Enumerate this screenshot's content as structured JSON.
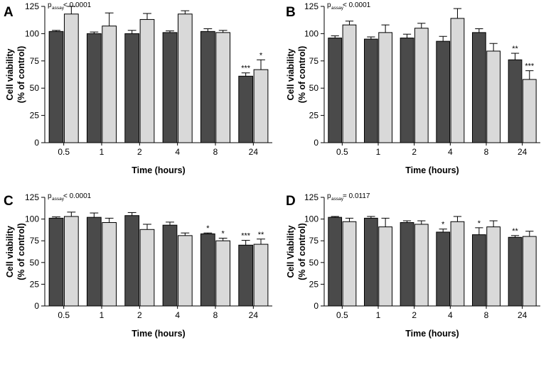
{
  "colors": {
    "dark_bar": "#4a4a4a",
    "light_bar": "#d9d9d9",
    "axis": "#000000"
  },
  "chart_data": [
    {
      "panel": "A",
      "type": "bar",
      "p_value": {
        "symbol": "p",
        "subscript": "assay",
        "text": " < 0.0001"
      },
      "xlabel": "Time (hours)",
      "ylabel": [
        "Cell viability",
        "(% of control)"
      ],
      "ylim": [
        0,
        125
      ],
      "yticks": [
        "0",
        "25",
        "50",
        "75",
        "100",
        "125"
      ],
      "categories": [
        "0.5",
        "1",
        "2",
        "4",
        "8",
        "24"
      ],
      "series": [
        {
          "name": "dark",
          "values": [
            102,
            100,
            100,
            101,
            102,
            61
          ],
          "errors": [
            1,
            1.5,
            3,
            1.5,
            2.5,
            3
          ],
          "sig": [
            "",
            "",
            "",
            "",
            "",
            "***"
          ]
        },
        {
          "name": "light",
          "values": [
            118,
            107,
            113,
            118,
            101,
            67
          ],
          "errors": [
            7,
            12,
            5.5,
            3,
            2,
            9
          ],
          "sig": [
            "",
            "",
            "",
            "",
            "",
            "*"
          ]
        }
      ]
    },
    {
      "panel": "B",
      "type": "bar",
      "p_value": {
        "symbol": "p",
        "subscript": "assay",
        "text": " < 0.0001"
      },
      "xlabel": "Time (hours)",
      "ylabel": [
        "Cell viability",
        "(% of control)"
      ],
      "ylim": [
        0,
        125
      ],
      "yticks": [
        "0",
        "25",
        "50",
        "75",
        "100",
        "125"
      ],
      "categories": [
        "0.5",
        "1",
        "2",
        "4",
        "8",
        "24"
      ],
      "series": [
        {
          "name": "dark",
          "values": [
            96,
            95,
            96,
            93,
            101,
            76
          ],
          "errors": [
            2,
            2,
            3.5,
            4.5,
            3.5,
            6
          ],
          "sig": [
            "",
            "",
            "",
            "",
            "",
            "**"
          ]
        },
        {
          "name": "light",
          "values": [
            108,
            101,
            105,
            114,
            84,
            58
          ],
          "errors": [
            3.5,
            7,
            4.5,
            9,
            7,
            8
          ],
          "sig": [
            "",
            "",
            "",
            "",
            "",
            "***"
          ]
        }
      ]
    },
    {
      "panel": "C",
      "type": "bar",
      "p_value": {
        "symbol": "p",
        "subscript": "assay",
        "text": " < 0.0001"
      },
      "xlabel": "Time (hours)",
      "ylabel": [
        "Cell viability",
        "(% of control)"
      ],
      "ylim": [
        0,
        125
      ],
      "yticks": [
        "0",
        "25",
        "50",
        "75",
        "100",
        "125"
      ],
      "categories": [
        "0.5",
        "1",
        "2",
        "4",
        "8",
        "24"
      ],
      "series": [
        {
          "name": "dark",
          "values": [
            101,
            102,
            104,
            93,
            83,
            70
          ],
          "errors": [
            1.5,
            5,
            3.5,
            3.5,
            1,
            5.5
          ],
          "sig": [
            "",
            "",
            "",
            "",
            "*",
            "***"
          ]
        },
        {
          "name": "light",
          "values": [
            103,
            96,
            88,
            81,
            75,
            71
          ],
          "errors": [
            5,
            5,
            6,
            3,
            3,
            6
          ],
          "sig": [
            "",
            "",
            "",
            "",
            "*",
            "**"
          ]
        }
      ]
    },
    {
      "panel": "D",
      "type": "bar",
      "p_value": {
        "symbol": "p",
        "subscript": "assay",
        "text": " = 0.0117"
      },
      "xlabel": "Time (hours)",
      "ylabel": [
        "Cell Viability",
        "(% of control)"
      ],
      "ylim": [
        0,
        125
      ],
      "yticks": [
        "0",
        "25",
        "50",
        "75",
        "100",
        "125"
      ],
      "categories": [
        "0.5",
        "1",
        "2",
        "4",
        "8",
        "24"
      ],
      "series": [
        {
          "name": "dark",
          "values": [
            102,
            101,
            96,
            85,
            82,
            79
          ],
          "errors": [
            1,
            2,
            2,
            3.5,
            8,
            2
          ],
          "sig": [
            "",
            "",
            "",
            "*",
            "*",
            "**"
          ]
        },
        {
          "name": "light",
          "values": [
            97,
            91,
            94,
            97,
            91,
            80
          ],
          "errors": [
            4,
            10,
            4,
            6,
            7,
            6
          ],
          "sig": [
            "",
            "",
            "",
            "",
            "",
            ""
          ]
        }
      ]
    }
  ]
}
